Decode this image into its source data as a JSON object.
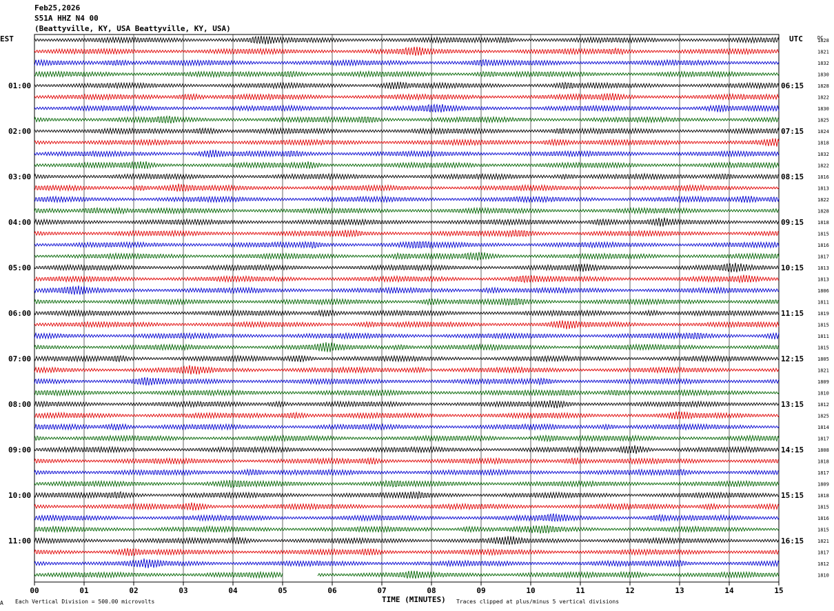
{
  "header": {
    "date": "Feb25,2026",
    "station": "S51A HHZ N4 00",
    "location": "(Beattyville, KY, USA Beattyville, KY, USA)"
  },
  "tz_left": "EST",
  "tz_right": "UTC",
  "dc_label": "DC",
  "footer": {
    "scale": "Each Vertical Division =  500.00 microvolts",
    "xlabel": "TIME (MINUTES)",
    "clip": "Traces clipped at plus/minus 5 vertical divisions"
  },
  "corner_mark": "A",
  "colors": {
    "cycle": [
      "#000000",
      "#e00000",
      "#0000d0",
      "#006400"
    ],
    "grid": "#000000"
  },
  "chart_data": {
    "type": "line",
    "title": "Feb25,2026",
    "xlabel": "TIME (MINUTES)",
    "ylabel": "",
    "xlim": [
      0,
      15
    ],
    "x_ticks": [
      "00",
      "01",
      "02",
      "03",
      "04",
      "05",
      "06",
      "07",
      "08",
      "09",
      "10",
      "11",
      "12",
      "13",
      "14",
      "15"
    ],
    "rows": 48,
    "rows_per_hour": 4,
    "left_hour_labels": [
      "01:00",
      "02:00",
      "03:00",
      "04:00",
      "05:00",
      "06:00",
      "07:00",
      "08:00",
      "09:00",
      "10:00",
      "11:00"
    ],
    "right_hour_labels": [
      "06:15",
      "07:15",
      "08:15",
      "09:15",
      "10:15",
      "11:15",
      "12:15",
      "13:15",
      "14:15",
      "15:15",
      "16:15"
    ],
    "dc_values": [
      "1828",
      "1821",
      "1832",
      "1830",
      "1828",
      "1822",
      "1830",
      "1825",
      "1824",
      "1818",
      "1832",
      "1822",
      "1816",
      "1813",
      "1822",
      "1828",
      "1818",
      "1815",
      "1816",
      "1817",
      "1813",
      "1813",
      "1806",
      "1811",
      "1819",
      "1815",
      "1811",
      "1815",
      "1805",
      "1821",
      "1809",
      "1810",
      "1812",
      "1825",
      "1814",
      "1817",
      "1808",
      "1818",
      "1817",
      "1809",
      "1818",
      "1815",
      "1816",
      "1815",
      "1821",
      "1817",
      "1812",
      "1810"
    ],
    "last_row_gap_minutes": [
      5.0,
      5.7
    ]
  }
}
